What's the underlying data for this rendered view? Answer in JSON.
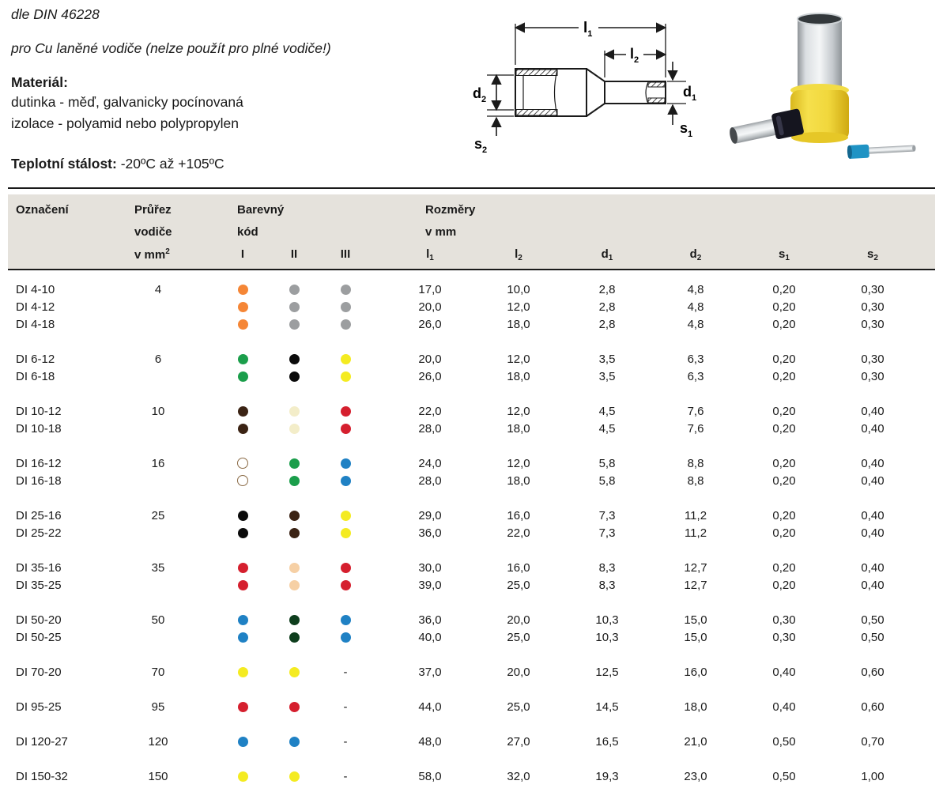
{
  "page": {
    "din_note": "dle DIN 46228",
    "usage_note": "pro Cu laněné vodiče (nelze použít pro plné vodiče!)",
    "material_label": "Materiál:",
    "material_line1": "dutinka - měď, galvanicky pocínovaná",
    "material_line2": "izolace - polyamid nebo polypropylen",
    "temp_label": "Teplotní stálost:",
    "temp_value": " -20ºC až +105ºC"
  },
  "diagram": {
    "labels": {
      "l1": {
        "base": "l",
        "sub": "1"
      },
      "l2": {
        "base": "l",
        "sub": "2"
      },
      "d1": {
        "base": "d",
        "sub": "1"
      },
      "d2": {
        "base": "d",
        "sub": "2"
      },
      "s1": {
        "base": "s",
        "sub": "1"
      },
      "s2": {
        "base": "s",
        "sub": "2"
      }
    }
  },
  "table": {
    "headers": {
      "designation": "Označení",
      "cross_line1": "Průřez",
      "cross_line2": "vodiče",
      "cross_line3_base": "v mm",
      "cross_line3_sup": "2",
      "color_line1": "Barevný",
      "color_line2": "kód",
      "color_cols": [
        "I",
        "II",
        "III"
      ],
      "dims_line1": "Rozměry",
      "dims_line2": "v mm",
      "dims": [
        {
          "base": "l",
          "sub": "1"
        },
        {
          "base": "l",
          "sub": "2"
        },
        {
          "base": "d",
          "sub": "1"
        },
        {
          "base": "d",
          "sub": "2"
        },
        {
          "base": "s",
          "sub": "1"
        },
        {
          "base": "s",
          "sub": "2"
        }
      ]
    },
    "color_palette": {
      "orange": "#f58636",
      "gray": "#9c9ea0",
      "green": "#1b9e4b",
      "black": "#0b0b0b",
      "yellow": "#f4eb21",
      "brown": "#3b2314",
      "ivory": "#f3edc9",
      "red": "#d51f2e",
      "white": "#ffffff",
      "blue": "#1f81c4",
      "darkgreen": "#0e3e1d",
      "beige": "#f6d0a5"
    },
    "no_color_symbol": "-",
    "groups": [
      {
        "cross_section": "4",
        "rows": [
          {
            "name": "DI 4-10",
            "colors": [
              "orange",
              "gray",
              "gray"
            ],
            "values": [
              "17,0",
              "10,0",
              "2,8",
              "4,8",
              "0,20",
              "0,30"
            ]
          },
          {
            "name": "DI 4-12",
            "colors": [
              "orange",
              "gray",
              "gray"
            ],
            "values": [
              "20,0",
              "12,0",
              "2,8",
              "4,8",
              "0,20",
              "0,30"
            ]
          },
          {
            "name": "DI 4-18",
            "colors": [
              "orange",
              "gray",
              "gray"
            ],
            "values": [
              "26,0",
              "18,0",
              "2,8",
              "4,8",
              "0,20",
              "0,30"
            ]
          }
        ]
      },
      {
        "cross_section": "6",
        "rows": [
          {
            "name": "DI 6-12",
            "colors": [
              "green",
              "black",
              "yellow"
            ],
            "values": [
              "20,0",
              "12,0",
              "3,5",
              "6,3",
              "0,20",
              "0,30"
            ]
          },
          {
            "name": "DI 6-18",
            "colors": [
              "green",
              "black",
              "yellow"
            ],
            "values": [
              "26,0",
              "18,0",
              "3,5",
              "6,3",
              "0,20",
              "0,30"
            ]
          }
        ]
      },
      {
        "cross_section": "10",
        "rows": [
          {
            "name": "DI 10-12",
            "colors": [
              "brown",
              "ivory",
              "red"
            ],
            "values": [
              "22,0",
              "12,0",
              "4,5",
              "7,6",
              "0,20",
              "0,40"
            ]
          },
          {
            "name": "DI 10-18",
            "colors": [
              "brown",
              "ivory",
              "red"
            ],
            "values": [
              "28,0",
              "18,0",
              "4,5",
              "7,6",
              "0,20",
              "0,40"
            ]
          }
        ]
      },
      {
        "cross_section": "16",
        "rows": [
          {
            "name": "DI 16-12",
            "colors": [
              "white",
              "green",
              "blue"
            ],
            "values": [
              "24,0",
              "12,0",
              "5,8",
              "8,8",
              "0,20",
              "0,40"
            ]
          },
          {
            "name": "DI 16-18",
            "colors": [
              "white",
              "green",
              "blue"
            ],
            "values": [
              "28,0",
              "18,0",
              "5,8",
              "8,8",
              "0,20",
              "0,40"
            ]
          }
        ]
      },
      {
        "cross_section": "25",
        "rows": [
          {
            "name": "DI 25-16",
            "colors": [
              "black",
              "brown",
              "yellow"
            ],
            "values": [
              "29,0",
              "16,0",
              "7,3",
              "11,2",
              "0,20",
              "0,40"
            ]
          },
          {
            "name": "DI 25-22",
            "colors": [
              "black",
              "brown",
              "yellow"
            ],
            "values": [
              "36,0",
              "22,0",
              "7,3",
              "11,2",
              "0,20",
              "0,40"
            ]
          }
        ]
      },
      {
        "cross_section": "35",
        "rows": [
          {
            "name": "DI 35-16",
            "colors": [
              "red",
              "beige",
              "red"
            ],
            "values": [
              "30,0",
              "16,0",
              "8,3",
              "12,7",
              "0,20",
              "0,40"
            ]
          },
          {
            "name": "DI 35-25",
            "colors": [
              "red",
              "beige",
              "red"
            ],
            "values": [
              "39,0",
              "25,0",
              "8,3",
              "12,7",
              "0,20",
              "0,40"
            ]
          }
        ]
      },
      {
        "cross_section": "50",
        "rows": [
          {
            "name": "DI 50-20",
            "colors": [
              "blue",
              "darkgreen",
              "blue"
            ],
            "values": [
              "36,0",
              "20,0",
              "10,3",
              "15,0",
              "0,30",
              "0,50"
            ]
          },
          {
            "name": "DI 50-25",
            "colors": [
              "blue",
              "darkgreen",
              "blue"
            ],
            "values": [
              "40,0",
              "25,0",
              "10,3",
              "15,0",
              "0,30",
              "0,50"
            ]
          }
        ]
      },
      {
        "cross_section": "70",
        "rows": [
          {
            "name": "DI 70-20",
            "colors": [
              "yellow",
              "yellow",
              "-"
            ],
            "values": [
              "37,0",
              "20,0",
              "12,5",
              "16,0",
              "0,40",
              "0,60"
            ]
          }
        ]
      },
      {
        "cross_section": "95",
        "rows": [
          {
            "name": "DI 95-25",
            "colors": [
              "red",
              "red",
              "-"
            ],
            "values": [
              "44,0",
              "25,0",
              "14,5",
              "18,0",
              "0,40",
              "0,60"
            ]
          }
        ]
      },
      {
        "cross_section": "120",
        "rows": [
          {
            "name": "DI 120-27",
            "colors": [
              "blue",
              "blue",
              "-"
            ],
            "values": [
              "48,0",
              "27,0",
              "16,5",
              "21,0",
              "0,50",
              "0,70"
            ]
          }
        ]
      },
      {
        "cross_section": "150",
        "rows": [
          {
            "name": "DI 150-32",
            "colors": [
              "yellow",
              "yellow",
              "-"
            ],
            "values": [
              "58,0",
              "32,0",
              "19,3",
              "23,0",
              "0,50",
              "1,00"
            ]
          }
        ]
      }
    ]
  }
}
